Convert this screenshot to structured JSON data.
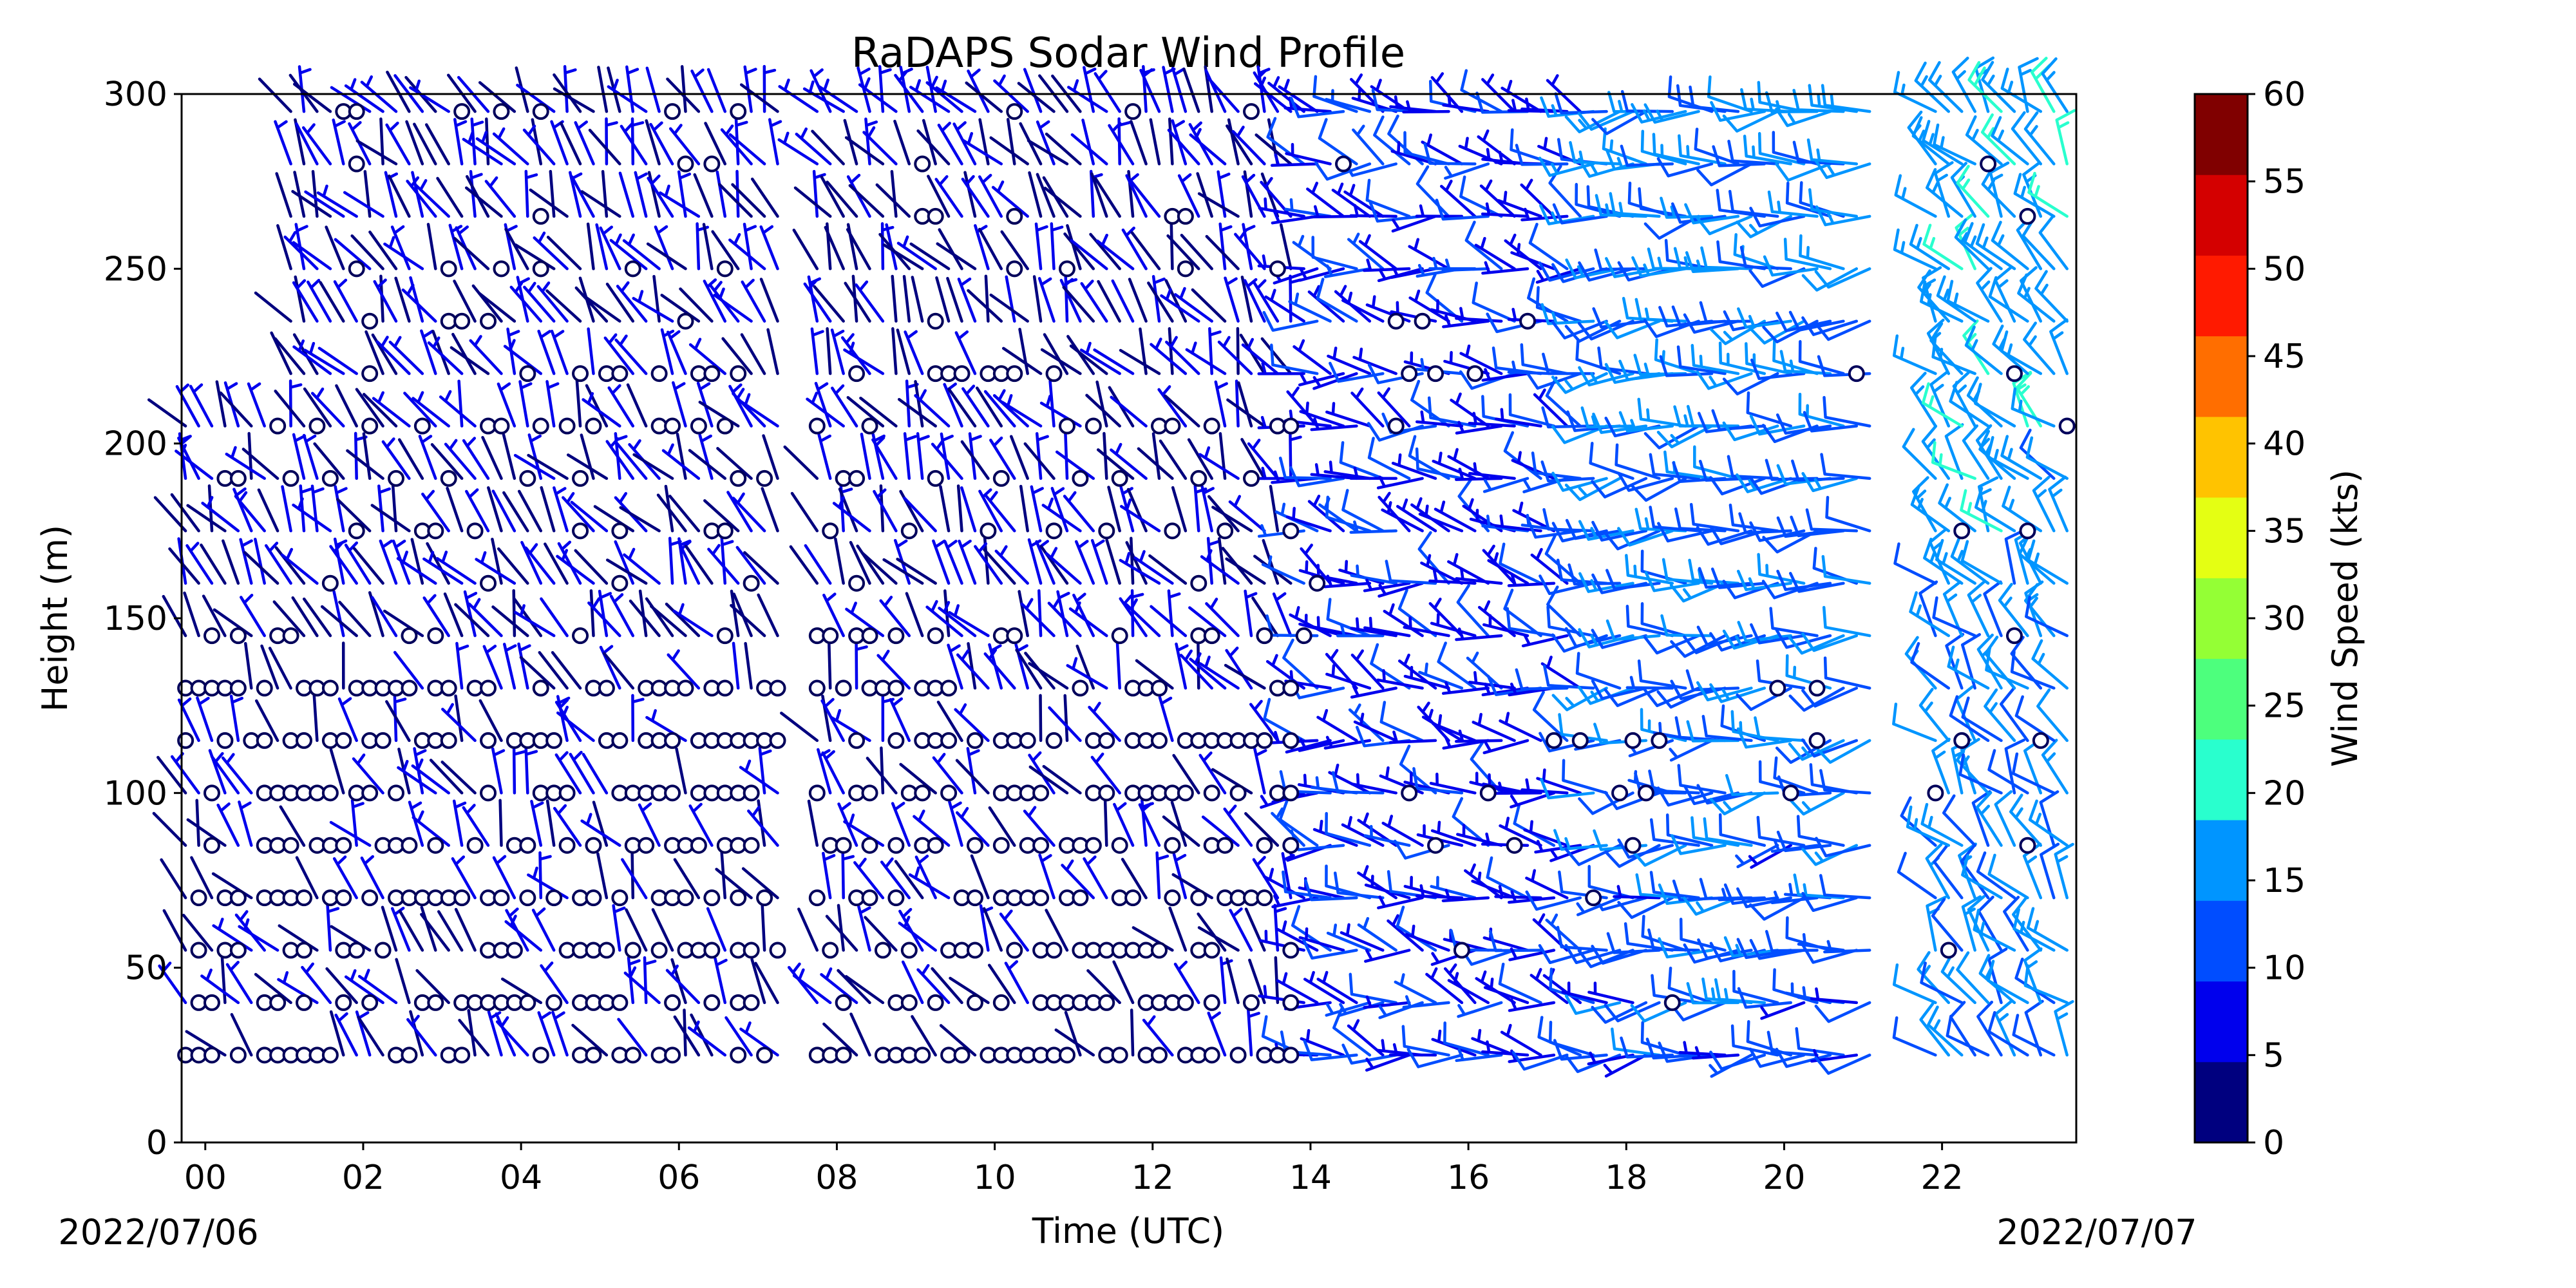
{
  "chart_data": {
    "type": "wind-barb",
    "title": "RaDAPS Sodar Wind Profile",
    "xlabel": "Time (UTC)",
    "ylabel": "Height (m)",
    "colorbar_label": "Wind Speed (kts)",
    "x_ticks": [
      "00",
      "02",
      "04",
      "06",
      "08",
      "10",
      "12",
      "14",
      "16",
      "18",
      "20",
      "22"
    ],
    "x_tick_hours": [
      0,
      2,
      4,
      6,
      8,
      10,
      12,
      14,
      16,
      18,
      20,
      22
    ],
    "xlim_hours": [
      -0.3,
      23.7
    ],
    "y_ticks": [
      "0",
      "50",
      "100",
      "150",
      "200",
      "250",
      "300"
    ],
    "y_tick_values": [
      0,
      50,
      100,
      150,
      200,
      250,
      300
    ],
    "ylim": [
      0,
      300
    ],
    "start_date": "2022/07/06",
    "end_date": "2022/07/07",
    "heights_m": [
      25,
      40,
      55,
      70,
      85,
      100,
      115,
      130,
      145,
      160,
      175,
      190,
      205,
      220,
      235,
      250,
      265,
      280,
      295
    ],
    "time_step_minutes": 10,
    "colorbar": {
      "ticks": [
        "0",
        "5",
        "10",
        "15",
        "20",
        "25",
        "30",
        "35",
        "40",
        "45",
        "50",
        "55",
        "60"
      ],
      "range": [
        0,
        60
      ],
      "colors": [
        "#00007f",
        "#0000ed",
        "#004dff",
        "#0095ff",
        "#29ffce",
        "#4dff7d",
        "#94ff35",
        "#e4ff13",
        "#ffc300",
        "#ff6e00",
        "#ff1a00",
        "#d40000",
        "#800000"
      ]
    },
    "grid": false,
    "legend": "none",
    "calm_symbol": "open circle (0 kts)",
    "regimes": [
      {
        "from_hour": -0.3,
        "to_hour": 13.8,
        "description": "light winds, 0-8 kts, many calm readings below 130 m"
      },
      {
        "from_hour": 13.8,
        "to_hour": 17.5,
        "description": "westerly to northwesterly winds, 5-12 kts"
      },
      {
        "from_hour": 17.5,
        "to_hour": 21.2,
        "description": "westerly winds, 8-15 kts"
      },
      {
        "from_hour": 21.8,
        "to_hour": 23.7,
        "description": "winds increasing to 10-18 kts aloft"
      }
    ]
  }
}
